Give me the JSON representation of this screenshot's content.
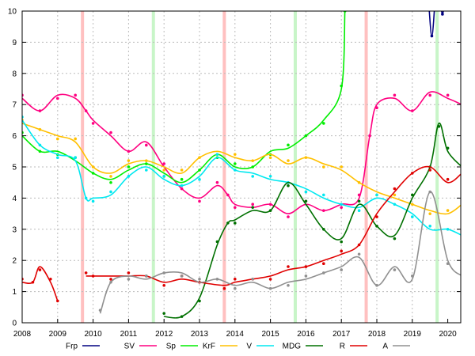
{
  "chart_data": {
    "type": "line",
    "xlim": [
      2008,
      2020.4
    ],
    "ylim": [
      0,
      10
    ],
    "grid": true,
    "legend_placement": "bottom",
    "x_ticks": [
      "2008",
      "2009",
      "2010",
      "2011",
      "2012",
      "2013",
      "2014",
      "2015",
      "2016",
      "2017",
      "2018",
      "2019",
      "2020"
    ],
    "y_ticks": [
      "0",
      "1",
      "2",
      "3",
      "4",
      "5",
      "6",
      "7",
      "8",
      "9",
      "10"
    ],
    "election_bands": [
      {
        "x": 2009.7,
        "color": "#ffc0c0"
      },
      {
        "x": 2013.7,
        "color": "#ffc0c0"
      },
      {
        "x": 2017.7,
        "color": "#ffc0c0"
      },
      {
        "x": 2011.7,
        "color": "#c8f5c8"
      },
      {
        "x": 2015.7,
        "color": "#c8f5c8"
      },
      {
        "x": 2019.7,
        "color": "#c8f5c8"
      }
    ],
    "series": [
      {
        "name": "Frp",
        "color": "#000080",
        "points": [
          [
            2019.45,
            10.5
          ],
          [
            2019.55,
            9.2
          ],
          [
            2019.65,
            10.5
          ],
          null,
          [
            2019.8,
            10.2
          ],
          [
            2019.85,
            9.9
          ],
          [
            2019.9,
            10.2
          ]
        ]
      },
      {
        "name": "SV",
        "color": "#ff0080",
        "points": [
          [
            2008,
            7.2
          ],
          [
            2008.5,
            6.8
          ],
          [
            2009,
            7.3
          ],
          [
            2009.5,
            7.2
          ],
          [
            2009.8,
            6.8
          ],
          [
            2010,
            6.5
          ],
          [
            2010.5,
            6.0
          ],
          [
            2011,
            5.5
          ],
          [
            2011.5,
            5.8
          ],
          [
            2012,
            5.0
          ],
          [
            2012.5,
            4.3
          ],
          [
            2013,
            4.0
          ],
          [
            2013.5,
            4.4
          ],
          [
            2013.8,
            4.1
          ],
          [
            2014,
            3.8
          ],
          [
            2014.5,
            3.7
          ],
          [
            2015,
            3.8
          ],
          [
            2015.5,
            3.5
          ],
          [
            2016,
            3.8
          ],
          [
            2016.5,
            3.6
          ],
          [
            2017,
            3.8
          ],
          [
            2017.5,
            4.0
          ],
          [
            2017.8,
            6.0
          ],
          [
            2018,
            7.0
          ],
          [
            2018.5,
            7.2
          ],
          [
            2019,
            6.8
          ],
          [
            2019.5,
            7.4
          ],
          [
            2020,
            7.2
          ],
          [
            2020.4,
            7.0
          ]
        ]
      },
      {
        "name": "Sp",
        "color": "#00ee00",
        "points": [
          [
            2008,
            6.0
          ],
          [
            2008.5,
            5.5
          ],
          [
            2009,
            5.5
          ],
          [
            2009.5,
            5.2
          ],
          [
            2010,
            4.8
          ],
          [
            2010.5,
            4.6
          ],
          [
            2011,
            4.9
          ],
          [
            2011.5,
            5.1
          ],
          [
            2012,
            4.8
          ],
          [
            2012.5,
            4.5
          ],
          [
            2013,
            4.9
          ],
          [
            2013.5,
            5.4
          ],
          [
            2014,
            5.0
          ],
          [
            2014.5,
            5.0
          ],
          [
            2015,
            5.5
          ],
          [
            2015.5,
            5.6
          ],
          [
            2016,
            6.0
          ],
          [
            2016.5,
            6.5
          ],
          [
            2017,
            7.5
          ],
          [
            2017.1,
            10
          ]
        ]
      },
      {
        "name": "KrF",
        "color": "#ffc000",
        "points": [
          [
            2008,
            6.4
          ],
          [
            2008.5,
            6.2
          ],
          [
            2009,
            6.0
          ],
          [
            2009.5,
            5.8
          ],
          [
            2010,
            5.0
          ],
          [
            2010.5,
            4.8
          ],
          [
            2011,
            5.1
          ],
          [
            2011.5,
            5.2
          ],
          [
            2012,
            5.0
          ],
          [
            2012.5,
            4.8
          ],
          [
            2013,
            5.3
          ],
          [
            2013.5,
            5.5
          ],
          [
            2014,
            5.3
          ],
          [
            2014.5,
            5.2
          ],
          [
            2015,
            5.4
          ],
          [
            2015.5,
            5.1
          ],
          [
            2016,
            5.3
          ],
          [
            2016.5,
            5.1
          ],
          [
            2017,
            4.9
          ],
          [
            2017.5,
            4.5
          ],
          [
            2018,
            4.2
          ],
          [
            2018.5,
            4.0
          ],
          [
            2019,
            3.8
          ],
          [
            2019.5,
            3.6
          ],
          [
            2020,
            3.5
          ],
          [
            2020.4,
            3.8
          ]
        ]
      },
      {
        "name": "V",
        "color": "#00e8f0",
        "points": [
          [
            2008,
            6.5
          ],
          [
            2008.5,
            5.7
          ],
          [
            2009,
            5.4
          ],
          [
            2009.5,
            5.2
          ],
          [
            2009.8,
            4.0
          ],
          [
            2010,
            4.0
          ],
          [
            2010.5,
            4.1
          ],
          [
            2011,
            4.7
          ],
          [
            2011.5,
            5.0
          ],
          [
            2012,
            4.6
          ],
          [
            2012.5,
            4.4
          ],
          [
            2013,
            4.7
          ],
          [
            2013.5,
            5.3
          ],
          [
            2014,
            4.9
          ],
          [
            2014.5,
            4.8
          ],
          [
            2015,
            4.6
          ],
          [
            2015.5,
            4.5
          ],
          [
            2016,
            4.3
          ],
          [
            2016.5,
            4.0
          ],
          [
            2017,
            3.8
          ],
          [
            2017.5,
            3.7
          ],
          [
            2018,
            4.0
          ],
          [
            2018.5,
            3.8
          ],
          [
            2019,
            3.5
          ],
          [
            2019.5,
            3.0
          ],
          [
            2020,
            3.0
          ],
          [
            2020.4,
            2.8
          ]
        ]
      },
      {
        "name": "MDG",
        "color": "#007000",
        "points": [
          [
            2012,
            0.2
          ],
          [
            2012.5,
            0.2
          ],
          [
            2013,
            0.8
          ],
          [
            2013.5,
            2.5
          ],
          [
            2013.8,
            3.2
          ],
          [
            2014,
            3.3
          ],
          [
            2014.5,
            3.6
          ],
          [
            2015,
            3.6
          ],
          [
            2015.5,
            4.5
          ],
          [
            2016,
            3.8
          ],
          [
            2016.5,
            3.0
          ],
          [
            2017,
            2.7
          ],
          [
            2017.5,
            3.8
          ],
          [
            2018,
            3.1
          ],
          [
            2018.5,
            2.8
          ],
          [
            2019,
            4.0
          ],
          [
            2019.5,
            5.0
          ],
          [
            2019.75,
            6.4
          ],
          [
            2020,
            5.5
          ],
          [
            2020.4,
            5.0
          ]
        ]
      },
      {
        "name": "R",
        "color": "#e00000",
        "points": [
          [
            2008,
            1.3
          ],
          [
            2008.3,
            1.3
          ],
          [
            2008.5,
            1.8
          ],
          [
            2008.8,
            1.3
          ],
          [
            2009,
            0.7
          ],
          null,
          [
            2009.8,
            1.5
          ],
          [
            2010,
            1.5
          ],
          [
            2010.5,
            1.5
          ],
          [
            2011,
            1.5
          ],
          [
            2011.5,
            1.5
          ],
          [
            2012,
            1.3
          ],
          [
            2012.5,
            1.4
          ],
          [
            2013,
            1.3
          ],
          [
            2013.7,
            1.2
          ],
          [
            2014,
            1.3
          ],
          [
            2014.5,
            1.4
          ],
          [
            2015,
            1.5
          ],
          [
            2015.5,
            1.7
          ],
          [
            2016,
            1.8
          ],
          [
            2016.5,
            2.0
          ],
          [
            2017,
            2.2
          ],
          [
            2017.5,
            2.5
          ],
          [
            2018,
            3.5
          ],
          [
            2018.5,
            4.2
          ],
          [
            2019,
            4.8
          ],
          [
            2019.5,
            5.0
          ],
          [
            2020,
            4.5
          ],
          [
            2020.4,
            4.8
          ]
        ]
      },
      {
        "name": "A",
        "color": "#909090",
        "points": [
          [
            2010.2,
            0.3
          ],
          [
            2010.5,
            1.3
          ],
          [
            2011,
            1.5
          ],
          [
            2011.5,
            1.4
          ],
          [
            2012,
            1.6
          ],
          [
            2012.5,
            1.6
          ],
          [
            2013,
            1.3
          ],
          [
            2013.5,
            1.4
          ],
          [
            2014,
            1.2
          ],
          [
            2014.5,
            1.3
          ],
          [
            2015,
            1.1
          ],
          [
            2015.5,
            1.3
          ],
          [
            2016,
            1.4
          ],
          [
            2016.5,
            1.6
          ],
          [
            2017,
            1.8
          ],
          [
            2017.5,
            2.1
          ],
          [
            2018,
            1.2
          ],
          [
            2018.5,
            1.8
          ],
          [
            2019,
            1.4
          ],
          [
            2019.5,
            4.2
          ],
          [
            2020,
            2.0
          ],
          [
            2020.4,
            1.5
          ]
        ]
      }
    ]
  }
}
